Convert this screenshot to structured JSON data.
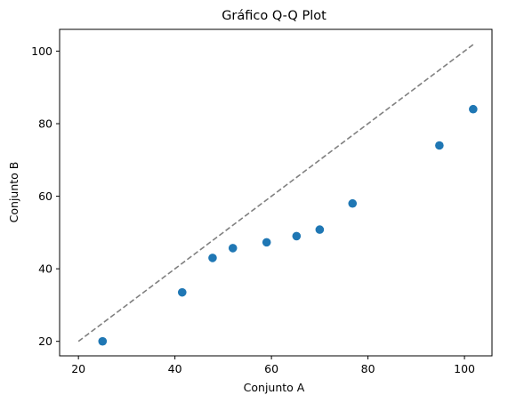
{
  "chart_data": {
    "type": "scatter",
    "title": "Gráfico Q-Q Plot",
    "xlabel": "Conjunto A",
    "ylabel": "Conjunto B",
    "xlim": [
      16.1,
      105.7
    ],
    "ylim": [
      16.0,
      106.0
    ],
    "xticks": [
      20,
      40,
      60,
      80,
      100
    ],
    "yticks": [
      20,
      40,
      60,
      80,
      100
    ],
    "grid": false,
    "points": {
      "color": "#1f77b4",
      "x": [
        25.0,
        41.5,
        47.8,
        52.0,
        59.0,
        65.2,
        70.0,
        76.8,
        94.8,
        101.8
      ],
      "y": [
        20.0,
        33.5,
        43.0,
        45.7,
        47.3,
        49.0,
        50.8,
        58.0,
        74.0,
        84.0
      ]
    },
    "reference_line": {
      "style": "dashed",
      "color": "#808080",
      "x": [
        20,
        101.8
      ],
      "y": [
        20,
        101.8
      ]
    }
  }
}
